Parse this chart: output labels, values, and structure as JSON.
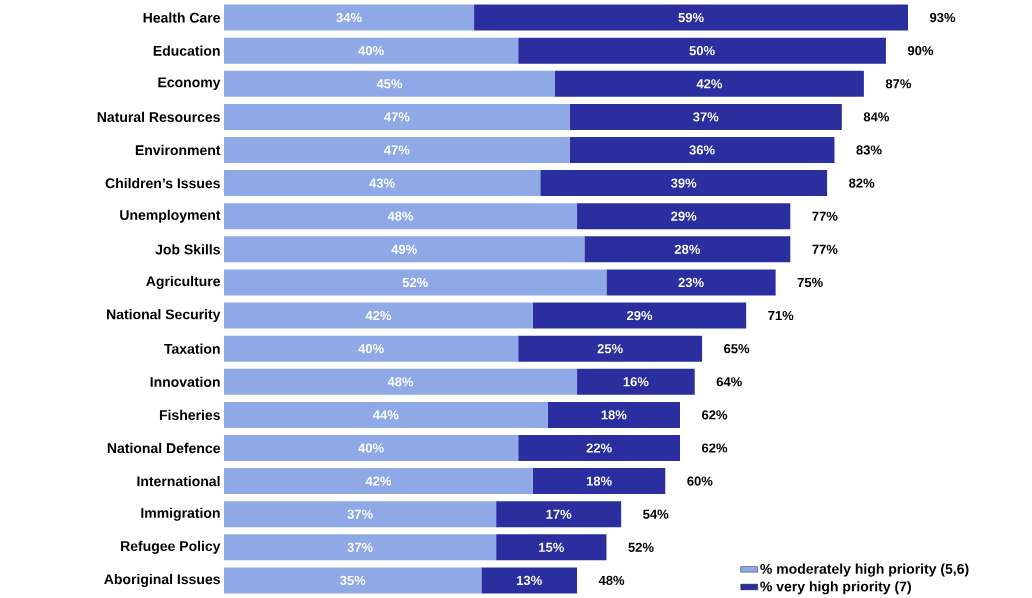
{
  "chart_data": {
    "type": "bar",
    "orientation": "horizontal",
    "stacked": true,
    "legend": "bottom right",
    "categories": [
      "Health Care",
      "Education",
      "Economy",
      "Natural Resources",
      "Environment",
      "Children’s Issues",
      "Unemployment",
      "Job Skills",
      "Agriculture",
      "National Security",
      "Taxation",
      "Innovation",
      "Fisheries",
      "National Defence",
      "International",
      "Immigration",
      "Refugee Policy",
      "Aboriginal Issues"
    ],
    "series": [
      {
        "name": "% moderately high priority (5,6)",
        "color": "#8fa9e6",
        "values": [
          34,
          40,
          45,
          47,
          47,
          43,
          48,
          49,
          52,
          42,
          40,
          48,
          44,
          40,
          42,
          37,
          37,
          35
        ],
        "value_labels": [
          "34%",
          "40%",
          "45%",
          "47%",
          "47%",
          "43%",
          "48%",
          "49%",
          "52%",
          "42%",
          "40%",
          "48%",
          "44%",
          "40%",
          "42%",
          "37%",
          "37%",
          "35%"
        ]
      },
      {
        "name": "% very high priority (7)",
        "color": "#2b2e9e",
        "values": [
          59,
          50,
          42,
          37,
          36,
          39,
          29,
          28,
          23,
          29,
          25,
          16,
          18,
          22,
          18,
          17,
          15,
          13
        ],
        "value_labels": [
          "59%",
          "50%",
          "42%",
          "37%",
          "36%",
          "39%",
          "29%",
          "28%",
          "23%",
          "29%",
          "25%",
          "16%",
          "18%",
          "22%",
          "18%",
          "17%",
          "15%",
          "13%"
        ]
      }
    ],
    "totals": [
      "93%",
      "90%",
      "87%",
      "84%",
      "83%",
      "82%",
      "77%",
      "77%",
      "75%",
      "71%",
      "65%",
      "64%",
      "62%",
      "62%",
      "60%",
      "54%",
      "52%",
      "48%"
    ]
  }
}
